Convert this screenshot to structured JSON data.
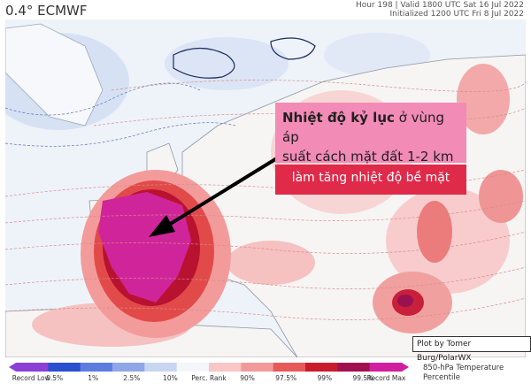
{
  "header": {
    "model": "0.4° ECMWF",
    "line1": "Hour 198 | Valid 1800 UTC Sat 16 Jul 2022",
    "line2": "Initialized 1200 UTC Fri 8 Jul 2022"
  },
  "callout": {
    "bold_text": "Nhiệt độ kỷ lục",
    "rest_line1": " ở vùng áp",
    "line2": "suất cách mặt đất 1-2 km",
    "secondary": "làm tăng nhiệt độ bề mặt"
  },
  "credit": "Plot by Tomer Burg/PolarWX",
  "legend": {
    "title_line1": "850-hPa Temperature",
    "title_line2": "Percentile",
    "labels": [
      "Record Low",
      "0.5%",
      "1%",
      "2.5%",
      "10%",
      "Perc. Rank",
      "90%",
      "97.5%",
      "99%",
      "99.5%",
      "Record Max"
    ],
    "colors": [
      "#8c3fd6",
      "#2a4fd0",
      "#5d7ee0",
      "#8fa7e8",
      "#c9d6f2",
      "#f4f6fb",
      "#f8c6c6",
      "#f29a9a",
      "#e85a5a",
      "#c81c2c",
      "#a01050",
      "#d020a0"
    ]
  }
}
